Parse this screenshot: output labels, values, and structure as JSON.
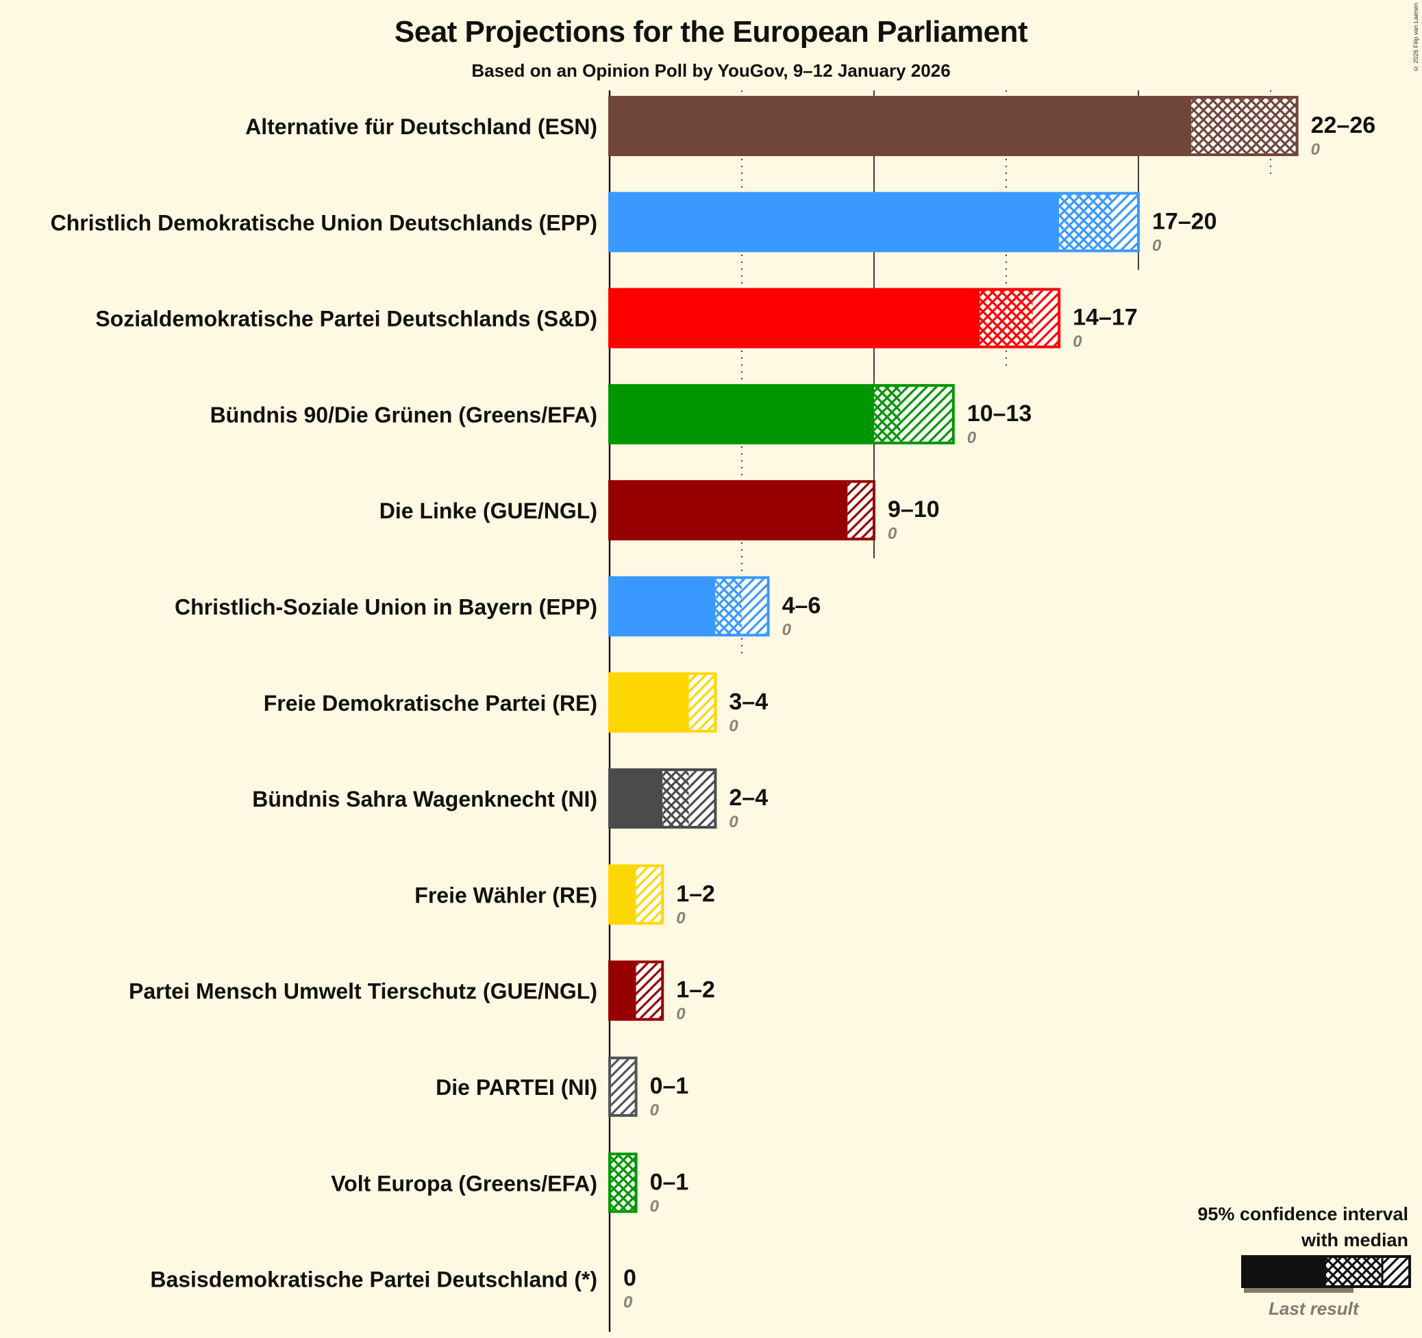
{
  "chart_data": {
    "type": "bar",
    "orientation": "horizontal",
    "title": "Seat Projections for the European Parliament",
    "subtitle": "Based on an Opinion Poll by YouGov, 9–12 January 2026",
    "credit": "© 2026 Filip van Laenen",
    "xlabel": "",
    "ylabel": "",
    "xlim": [
      0,
      26
    ],
    "grid": {
      "solid_every": 10,
      "dotted_every": 5,
      "ticks": [
        0,
        5,
        10,
        15,
        20,
        25
      ]
    },
    "series": [
      {
        "party": "Alternative für Deutschland (ESN)",
        "color": "#70463b",
        "low": 22,
        "median": 26,
        "high": 26,
        "label": "22–26",
        "last_result": 0
      },
      {
        "party": "Christlich Demokratische Union Deutschlands (EPP)",
        "color": "#3a99ff",
        "low": 17,
        "median": 19,
        "high": 20,
        "label": "17–20",
        "last_result": 0
      },
      {
        "party": "Sozialdemokratische Partei Deutschlands (S&D)",
        "color": "#ff0000",
        "low": 14,
        "median": 16,
        "high": 17,
        "label": "14–17",
        "last_result": 0
      },
      {
        "party": "Bündnis 90/Die Grünen (Greens/EFA)",
        "color": "#009600",
        "low": 10,
        "median": 11,
        "high": 13,
        "label": "10–13",
        "last_result": 0
      },
      {
        "party": "Die Linke (GUE/NGL)",
        "color": "#960000",
        "low": 9,
        "median": 9,
        "high": 10,
        "label": "9–10",
        "last_result": 0
      },
      {
        "party": "Christlich-Soziale Union in Bayern (EPP)",
        "color": "#3a99ff",
        "low": 4,
        "median": 5,
        "high": 6,
        "label": "4–6",
        "last_result": 0
      },
      {
        "party": "Freie Demokratische Partei (RE)",
        "color": "#ffd700",
        "low": 3,
        "median": 3,
        "high": 4,
        "label": "3–4",
        "last_result": 0
      },
      {
        "party": "Bündnis Sahra Wagenknecht (NI)",
        "color": "#4b4b4b",
        "low": 2,
        "median": 3,
        "high": 4,
        "label": "2–4",
        "last_result": 0
      },
      {
        "party": "Freie Wähler (RE)",
        "color": "#ffd700",
        "low": 1,
        "median": 1,
        "high": 2,
        "label": "1–2",
        "last_result": 0
      },
      {
        "party": "Partei Mensch Umwelt Tierschutz (GUE/NGL)",
        "color": "#960000",
        "low": 1,
        "median": 1,
        "high": 2,
        "label": "1–2",
        "last_result": 0
      },
      {
        "party": "Die PARTEI (NI)",
        "color": "#555555",
        "low": 0,
        "median": 0,
        "high": 1,
        "label": "0–1",
        "last_result": 0
      },
      {
        "party": "Volt Europa (Greens/EFA)",
        "color": "#009600",
        "low": 0,
        "median": 1,
        "high": 1,
        "label": "0–1",
        "last_result": 0
      },
      {
        "party": "Basisdemokratische Partei Deutschland (*)",
        "color": "#888888",
        "low": 0,
        "median": 0,
        "high": 0,
        "label": "0",
        "last_result": 0
      }
    ],
    "legend": {
      "title_line1": "95% confidence interval",
      "title_line2": "with median",
      "last_result_label": "Last result",
      "position": "bottom-right"
    }
  }
}
